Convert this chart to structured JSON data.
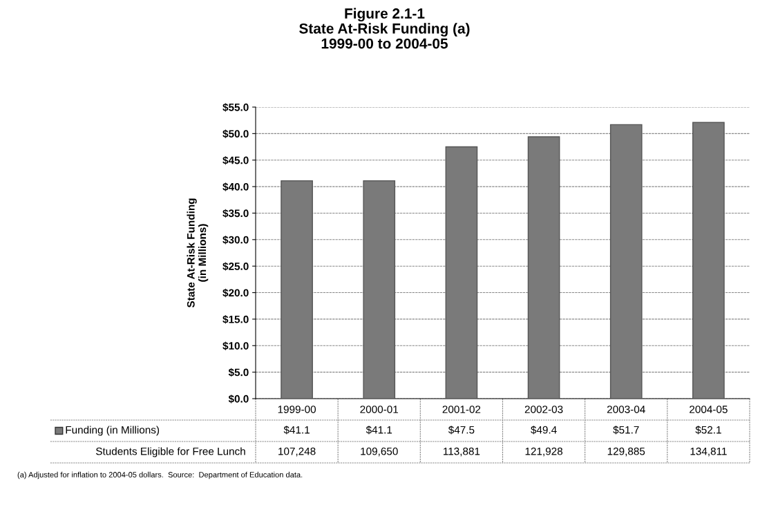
{
  "chart_data": {
    "type": "bar",
    "title": "Figure 2.1-1\nState At-Risk Funding (a)\n1999-00 to 2004-05",
    "ylabel": "State At-Risk Funding\n(in Millions)",
    "categories": [
      "1999-00",
      "2000-01",
      "2001-02",
      "2002-03",
      "2003-04",
      "2004-05"
    ],
    "series": [
      {
        "name": "Funding (in Millions)",
        "color": "#7a7a7a",
        "values": [
          41.1,
          41.1,
          47.5,
          49.4,
          51.7,
          52.1
        ],
        "value_labels": [
          "$41.1",
          "$41.1",
          "$47.5",
          "$49.4",
          "$51.7",
          "$52.1"
        ]
      }
    ],
    "ylim": [
      0,
      55
    ],
    "yticks": [
      {
        "value": 0,
        "label": "$0.0"
      },
      {
        "value": 5,
        "label": "$5.0"
      },
      {
        "value": 10,
        "label": "$10.0"
      },
      {
        "value": 15,
        "label": "$15.0"
      },
      {
        "value": 20,
        "label": "$20.0"
      },
      {
        "value": 25,
        "label": "$25.0"
      },
      {
        "value": 30,
        "label": "$30.0"
      },
      {
        "value": 35,
        "label": "$35.0"
      },
      {
        "value": 40,
        "label": "$40.0"
      },
      {
        "value": 45,
        "label": "$45.0"
      },
      {
        "value": 50,
        "label": "$50.0"
      },
      {
        "value": 55,
        "label": "$55.0"
      }
    ],
    "grid": "y",
    "legend": "bottom",
    "annotations": [
      "Students Eligible for Free Lunch",
      "107,248",
      "109,650",
      "113,881",
      "121,928",
      "129,885",
      "134,811",
      "(a) Adjusted for inflation to 2004-05 dollars.  Source:  Department of Education data."
    ]
  }
}
